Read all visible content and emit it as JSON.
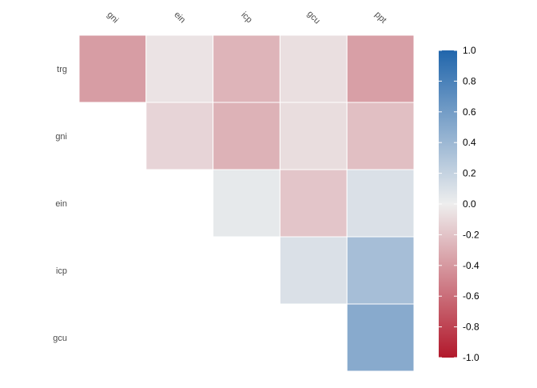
{
  "chart_data": {
    "type": "heatmap",
    "title": "",
    "xlabel": "",
    "ylabel": "",
    "x_categories": [
      "gni",
      "ein",
      "icp",
      "gcu",
      "ppt"
    ],
    "y_categories": [
      "trg",
      "gni",
      "ein",
      "icp",
      "gcu"
    ],
    "values": [
      [
        -0.38,
        -0.05,
        -0.27,
        -0.07,
        -0.37
      ],
      [
        null,
        -0.12,
        -0.28,
        -0.08,
        -0.22
      ],
      [
        null,
        null,
        0.04,
        -0.19,
        0.1
      ],
      [
        null,
        null,
        null,
        0.1,
        0.35
      ],
      [
        null,
        null,
        null,
        null,
        0.5
      ]
    ],
    "color_scale": {
      "low": "#B2182B",
      "mid": "#EEEEEE",
      "high": "#2166AC",
      "limits": [
        -1,
        1
      ]
    },
    "legend": {
      "placement": "right",
      "ticks": [
        "1.0",
        "0.8",
        "0.6",
        "0.4",
        "0.2",
        "0.0",
        "-0.2",
        "-0.4",
        "-0.6",
        "-0.8",
        "-1.0"
      ]
    },
    "grid": false
  }
}
